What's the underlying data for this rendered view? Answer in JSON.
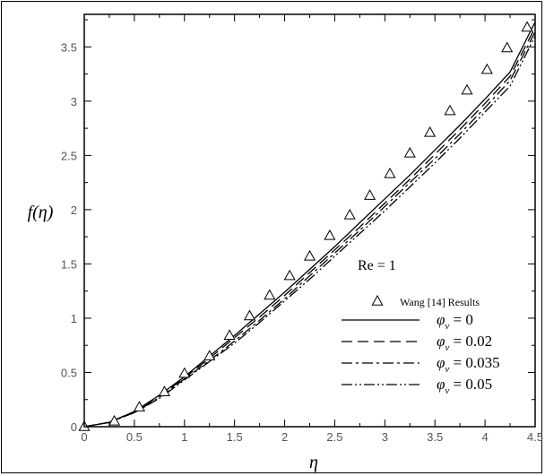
{
  "chart_data": {
    "type": "line",
    "xlabel": "η",
    "ylabel": "f(η)",
    "xlim": [
      0,
      4.5
    ],
    "ylim": [
      0,
      3.8
    ],
    "x_ticks": [
      "0",
      "0.5",
      "1",
      "1.5",
      "2",
      "2.5",
      "3",
      "3.5",
      "4",
      "4.5"
    ],
    "y_ticks": [
      "0",
      "0.5",
      "1",
      "1.5",
      "2",
      "2.5",
      "3",
      "3.5"
    ],
    "grid": false,
    "legend_placement": "bottom-right",
    "annotation": "Re = 1",
    "series": [
      {
        "name": "φv = 0",
        "name_parts": [
          "φ",
          "v",
          " = 0"
        ],
        "style": "solid",
        "x": [
          0,
          0.25,
          0.5,
          0.75,
          1.0,
          1.25,
          1.5,
          1.75,
          2.0,
          2.25,
          2.5,
          2.75,
          3.0,
          3.25,
          3.5,
          3.75,
          4.0,
          4.25,
          4.5
        ],
        "y": [
          0,
          0.04,
          0.14,
          0.29,
          0.46,
          0.65,
          0.84,
          1.04,
          1.24,
          1.45,
          1.66,
          1.88,
          2.1,
          2.32,
          2.55,
          2.78,
          3.02,
          3.27,
          3.73
        ]
      },
      {
        "name": "φv = 0.02",
        "name_parts": [
          "φ",
          "v",
          " = 0.02"
        ],
        "style": "dashed",
        "x": [
          0,
          0.25,
          0.5,
          0.75,
          1.0,
          1.25,
          1.5,
          1.75,
          2.0,
          2.25,
          2.5,
          2.75,
          3.0,
          3.25,
          3.5,
          3.75,
          4.0,
          4.25,
          4.5
        ],
        "y": [
          0,
          0.04,
          0.14,
          0.28,
          0.45,
          0.63,
          0.82,
          1.01,
          1.21,
          1.42,
          1.63,
          1.84,
          2.06,
          2.28,
          2.51,
          2.74,
          2.98,
          3.23,
          3.68
        ]
      },
      {
        "name": "φv = 0.035",
        "name_parts": [
          "φ",
          "v",
          " = 0.035"
        ],
        "style": "dashdot",
        "x": [
          0,
          0.25,
          0.5,
          0.75,
          1.0,
          1.25,
          1.5,
          1.75,
          2.0,
          2.25,
          2.5,
          2.75,
          3.0,
          3.25,
          3.5,
          3.75,
          4.0,
          4.25,
          4.5
        ],
        "y": [
          0,
          0.04,
          0.13,
          0.27,
          0.44,
          0.61,
          0.79,
          0.98,
          1.18,
          1.39,
          1.6,
          1.81,
          2.03,
          2.25,
          2.47,
          2.7,
          2.94,
          3.19,
          3.64
        ]
      },
      {
        "name": "φv = 0.05",
        "name_parts": [
          "φ",
          "v",
          " = 0.05"
        ],
        "style": "dashdotdot",
        "x": [
          0,
          0.25,
          0.5,
          0.75,
          1.0,
          1.25,
          1.5,
          1.75,
          2.0,
          2.25,
          2.5,
          2.75,
          3.0,
          3.25,
          3.5,
          3.75,
          4.0,
          4.25,
          4.5
        ],
        "y": [
          0,
          0.04,
          0.13,
          0.26,
          0.43,
          0.6,
          0.77,
          0.96,
          1.16,
          1.36,
          1.57,
          1.78,
          1.99,
          2.21,
          2.43,
          2.66,
          2.9,
          3.14,
          3.6
        ]
      },
      {
        "name": "Wang [14] Results",
        "style": "triangle-markers",
        "x": [
          0,
          0.3,
          0.55,
          0.8,
          1.0,
          1.25,
          1.45,
          1.65,
          1.85,
          2.05,
          2.25,
          2.45,
          2.65,
          2.85,
          3.05,
          3.25,
          3.45,
          3.65,
          3.82,
          4.02,
          4.22,
          4.42
        ],
        "y": [
          0,
          0.05,
          0.18,
          0.32,
          0.49,
          0.65,
          0.84,
          1.02,
          1.21,
          1.39,
          1.57,
          1.76,
          1.95,
          2.13,
          2.33,
          2.52,
          2.71,
          2.91,
          3.1,
          3.29,
          3.49,
          3.68
        ]
      }
    ]
  }
}
